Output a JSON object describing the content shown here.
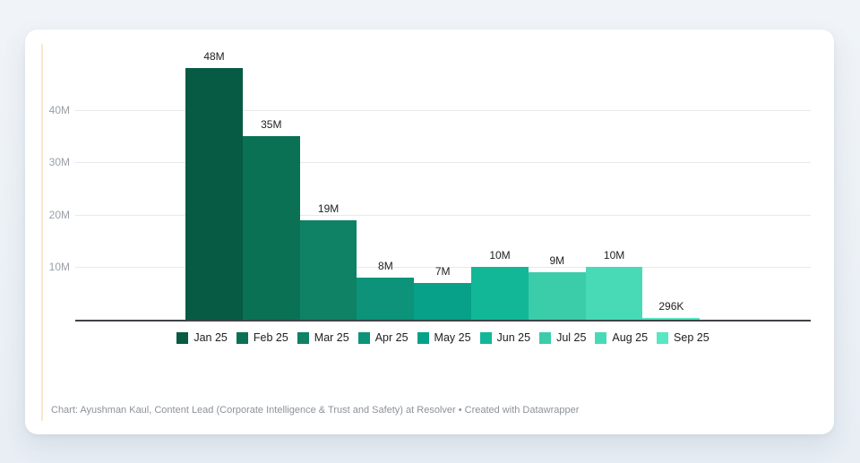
{
  "page": {
    "background": "#eaeff5"
  },
  "card": {
    "background": "#ffffff",
    "accent_line_color": "#f5e9c9"
  },
  "chart_data": {
    "type": "bar",
    "categories": [
      "Jan 25",
      "Feb 25",
      "Mar 25",
      "Apr 25",
      "May 25",
      "Jun 25",
      "Jul 25",
      "Aug 25",
      "Sep 25"
    ],
    "values": [
      48000000,
      35000000,
      19000000,
      8000000,
      7000000,
      10000000,
      9000000,
      10000000,
      296000
    ],
    "value_labels": [
      "48M",
      "35M",
      "19M",
      "8M",
      "7M",
      "10M",
      "9M",
      "10M",
      "296K"
    ],
    "bar_colors": [
      "#075a43",
      "#0b7155",
      "#0f8165",
      "#0c9379",
      "#07a189",
      "#12b798",
      "#3bccaa",
      "#48dab7",
      "#58e6c3"
    ],
    "title": "",
    "xlabel": "",
    "ylabel": "",
    "y_axis": {
      "ticks": [
        {
          "label": "10M",
          "value": 10000000
        },
        {
          "label": "20M",
          "value": 20000000
        },
        {
          "label": "30M",
          "value": 30000000
        },
        {
          "label": "40M",
          "value": 40000000
        }
      ],
      "ylim": [
        0,
        48000000
      ]
    },
    "grid": true,
    "legend_position": "bottom"
  },
  "footer": {
    "text": "Chart: Ayushman Kaul, Content Lead (Corporate Intelligence & Trust and Safety) at Resolver • Created with Datawrapper"
  }
}
